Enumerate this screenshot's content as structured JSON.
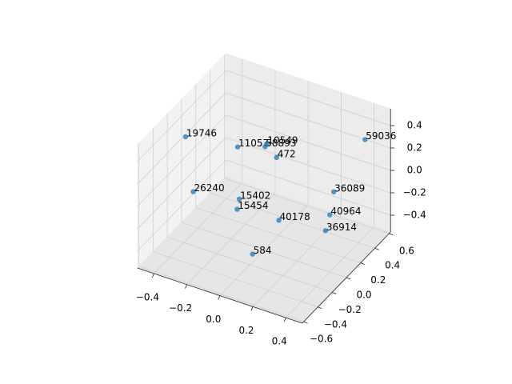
{
  "chart_data": {
    "type": "scatter3d",
    "labels": [
      "19746",
      "11057",
      "58893",
      "10549",
      "472",
      "59036",
      "26240",
      "15402",
      "15454",
      "36089",
      "40178",
      "40964",
      "36914",
      "584"
    ],
    "x": [
      -0.39,
      -0.29,
      -0.21,
      -0.2,
      -0.01,
      0.44,
      -0.3,
      -0.15,
      -0.12,
      0.25,
      0.09,
      0.27,
      0.33,
      0.06
    ],
    "y": [
      -0.2,
      0.3,
      0.5,
      0.5,
      0.2,
      0.4,
      -0.3,
      0,
      -0.1,
      0.4,
      0,
      0.3,
      0.1,
      -0.3
    ],
    "z": [
      0.4,
      0.03,
      -0.06,
      -0.03,
      0.14,
      0.39,
      0.02,
      -0.17,
      -0.18,
      -0.17,
      -0.24,
      -0.3,
      -0.28,
      -0.36
    ],
    "color": "#1f77b4",
    "xlim": [
      -0.5,
      0.5
    ],
    "ylim": [
      -0.62,
      0.62
    ],
    "zlim": [
      -0.55,
      0.55
    ],
    "xticks": [
      {
        "value": -0.4,
        "label": "−0.4"
      },
      {
        "value": -0.2,
        "label": "−0.2"
      },
      {
        "value": 0,
        "label": "0.0"
      },
      0.2,
      0.4
    ],
    "yticks": [
      {
        "value": -0.6,
        "label": "−0.6"
      },
      {
        "value": -0.4,
        "label": "−0.4"
      },
      {
        "value": -0.2,
        "label": "−0.2"
      },
      {
        "value": 0,
        "label": "0.0"
      },
      0.2,
      0.4,
      0.6
    ],
    "zticks": [
      {
        "value": -0.4,
        "label": "−0.4"
      },
      {
        "value": -0.2,
        "label": "−0.2"
      },
      {
        "value": 0,
        "label": "0.0"
      },
      0.2,
      0.4
    ],
    "grid": true
  }
}
